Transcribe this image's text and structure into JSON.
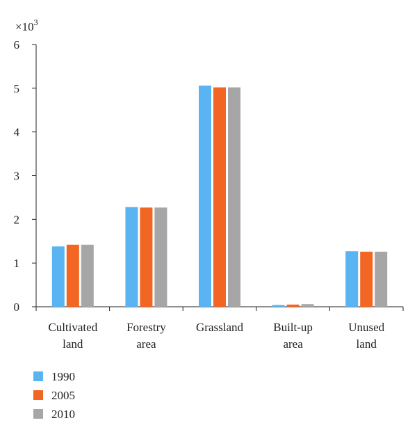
{
  "chart_data": {
    "type": "bar",
    "title": "",
    "xlabel": "",
    "ylabel": "",
    "y_multiplier_label": "×10",
    "y_multiplier_exponent": "3",
    "ylim": [
      0,
      6
    ],
    "yticks": [
      "0",
      "1",
      "2",
      "3",
      "4",
      "5",
      "6"
    ],
    "grid": false,
    "legend_position": "bottom-left",
    "categories": [
      [
        "Cultivated",
        "land"
      ],
      [
        "Forestry",
        "area"
      ],
      [
        "Grassland"
      ],
      [
        "Built-up",
        "area"
      ],
      [
        "Unused",
        "land"
      ]
    ],
    "series": [
      {
        "name": "1990",
        "color": "#5ab4f2",
        "values": [
          1.38,
          2.28,
          5.06,
          0.04,
          1.27
        ]
      },
      {
        "name": "2005",
        "color": "#f26522",
        "values": [
          1.42,
          2.27,
          5.02,
          0.05,
          1.26
        ]
      },
      {
        "name": "2010",
        "color": "#a6a6a6",
        "values": [
          1.42,
          2.27,
          5.02,
          0.06,
          1.26
        ]
      }
    ]
  }
}
